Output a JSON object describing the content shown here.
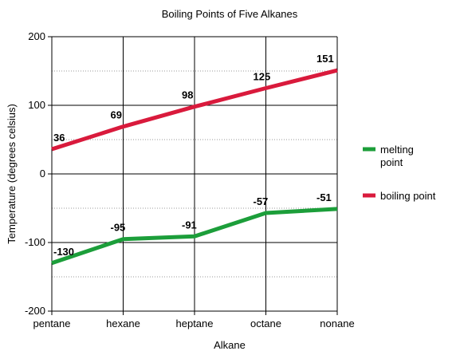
{
  "chart_data": {
    "type": "line",
    "title": "Boiling Points of Five Alkanes",
    "xlabel": "Alkane",
    "ylabel": "Temperature (degrees celsius)",
    "categories": [
      "pentane",
      "hexane",
      "heptane",
      "octane",
      "nonane"
    ],
    "ylim": [
      -200,
      200
    ],
    "y_ticks": [
      -200,
      -100,
      0,
      100,
      200
    ],
    "y_minor_gridlines": [
      -150,
      -50,
      50,
      150
    ],
    "grid": true,
    "legend_position": "right",
    "series": [
      {
        "name": "melting point",
        "legend_lines": [
          "melting",
          "point"
        ],
        "color": "#1c9e3a",
        "values": [
          -130,
          -95,
          -91,
          -57,
          -51
        ]
      },
      {
        "name": "boiling point",
        "legend_lines": [
          "boiling point"
        ],
        "color": "#d91a3c",
        "values": [
          36,
          69,
          98,
          125,
          151
        ]
      }
    ]
  }
}
